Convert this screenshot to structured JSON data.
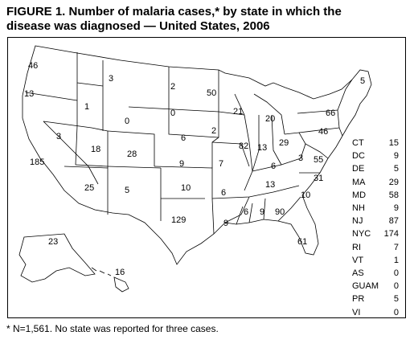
{
  "title": {
    "line1": "FIGURE 1. Number of malaria cases,* by state in which the",
    "line2": "disease was diagnosed — United States, 2006"
  },
  "map_labels": [
    {
      "state": "WA",
      "value": "46"
    },
    {
      "state": "OR",
      "value": "13"
    },
    {
      "state": "ID",
      "value": "1"
    },
    {
      "state": "MT",
      "value": "3"
    },
    {
      "state": "ND",
      "value": "2"
    },
    {
      "state": "SD",
      "value": "0"
    },
    {
      "state": "WY",
      "value": "0"
    },
    {
      "state": "NE",
      "value": "6"
    },
    {
      "state": "MN",
      "value": "50"
    },
    {
      "state": "WI",
      "value": "21"
    },
    {
      "state": "IA",
      "value": "2"
    },
    {
      "state": "MI",
      "value": "20"
    },
    {
      "state": "NV",
      "value": "3"
    },
    {
      "state": "CA",
      "value": "185"
    },
    {
      "state": "UT",
      "value": "18"
    },
    {
      "state": "CO",
      "value": "28"
    },
    {
      "state": "KS",
      "value": "9"
    },
    {
      "state": "MO",
      "value": "7"
    },
    {
      "state": "IL",
      "value": "82"
    },
    {
      "state": "IN",
      "value": "13"
    },
    {
      "state": "OH",
      "value": "29"
    },
    {
      "state": "KY",
      "value": "6"
    },
    {
      "state": "WV",
      "value": "3"
    },
    {
      "state": "VA",
      "value": "55"
    },
    {
      "state": "NY",
      "value": "66"
    },
    {
      "state": "PA",
      "value": "46"
    },
    {
      "state": "ME",
      "value": "5"
    },
    {
      "state": "AZ",
      "value": "25"
    },
    {
      "state": "NM",
      "value": "5"
    },
    {
      "state": "OK",
      "value": "10"
    },
    {
      "state": "AR",
      "value": "6"
    },
    {
      "state": "TN",
      "value": "13"
    },
    {
      "state": "NC",
      "value": "31"
    },
    {
      "state": "SC",
      "value": "10"
    },
    {
      "state": "TX",
      "value": "129"
    },
    {
      "state": "LA",
      "value": "9"
    },
    {
      "state": "MS",
      "value": "6"
    },
    {
      "state": "AL",
      "value": "9"
    },
    {
      "state": "GA",
      "value": "90"
    },
    {
      "state": "FL",
      "value": "61"
    },
    {
      "state": "AK",
      "value": "23"
    },
    {
      "state": "HI",
      "value": "16"
    }
  ],
  "legend": [
    {
      "abbr": "CT",
      "value": "15"
    },
    {
      "abbr": "DC",
      "value": "9"
    },
    {
      "abbr": "DE",
      "value": "5"
    },
    {
      "abbr": "MA",
      "value": "29"
    },
    {
      "abbr": "MD",
      "value": "58"
    },
    {
      "abbr": "NH",
      "value": "9"
    },
    {
      "abbr": "NJ",
      "value": "87"
    },
    {
      "abbr": "NYC",
      "value": "174"
    },
    {
      "abbr": "RI",
      "value": "7"
    },
    {
      "abbr": "VT",
      "value": "1"
    },
    {
      "abbr": "AS",
      "value": "0"
    },
    {
      "abbr": "GUAM",
      "value": "0"
    },
    {
      "abbr": "PR",
      "value": "5"
    },
    {
      "abbr": "VI",
      "value": "0"
    }
  ],
  "footnote": "* N=1,561. No state was reported for three cases."
}
